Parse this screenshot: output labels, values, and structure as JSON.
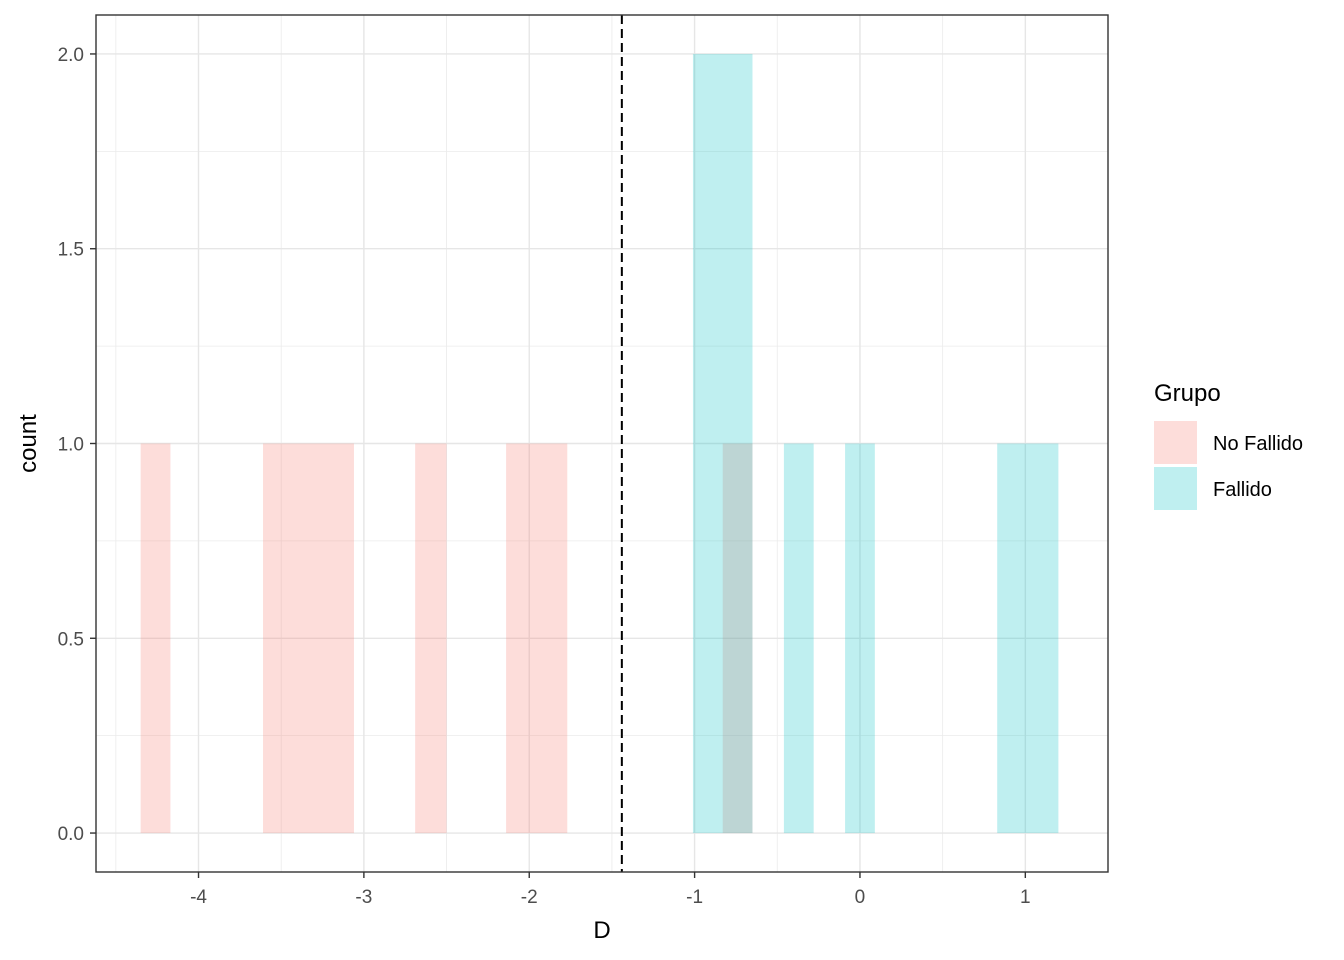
{
  "chart_data": {
    "type": "bar",
    "subtype": "histogram",
    "title": "",
    "xlabel": "D",
    "ylabel": "count",
    "xlim": [
      -4.62,
      1.5
    ],
    "ylim": [
      -0.1,
      2.1
    ],
    "x_ticks": [
      -4,
      -3,
      -2,
      -1,
      0,
      1
    ],
    "x_tick_labels": [
      "-4",
      "-3",
      "-2",
      "-1",
      "0",
      "1"
    ],
    "y_ticks": [
      0,
      0.5,
      1,
      1.5,
      2
    ],
    "y_tick_labels": [
      "0.0",
      "0.5",
      "1.0",
      "1.5",
      "2.0"
    ],
    "grid": true,
    "vline": {
      "x": -1.44,
      "style": "dashed",
      "color": "#000000"
    },
    "legend": {
      "title": "Grupo",
      "placement": "right",
      "items": [
        {
          "label": "No Fallido",
          "color": "#F8766D"
        },
        {
          "label": "Fallido",
          "color": "#00BFC4"
        }
      ]
    },
    "fill_opacity": 0.25,
    "series": [
      {
        "name": "No Fallido",
        "color": "#F8766D",
        "bins": [
          {
            "x0": -4.35,
            "x1": -4.17,
            "count": 1
          },
          {
            "x0": -3.61,
            "x1": -3.06,
            "count": 1
          },
          {
            "x0": -2.69,
            "x1": -2.5,
            "count": 1
          },
          {
            "x0": -2.14,
            "x1": -1.77,
            "count": 1
          },
          {
            "x0": -0.83,
            "x1": -0.65,
            "count": 1
          }
        ]
      },
      {
        "name": "Fallido",
        "color": "#00BFC4",
        "bins": [
          {
            "x0": -1.01,
            "x1": -0.65,
            "count": 2
          },
          {
            "x0": -0.46,
            "x1": -0.28,
            "count": 1
          },
          {
            "x0": -0.09,
            "x1": 0.09,
            "count": 1
          },
          {
            "x0": 0.83,
            "x1": 1.2,
            "count": 1
          }
        ]
      }
    ]
  }
}
